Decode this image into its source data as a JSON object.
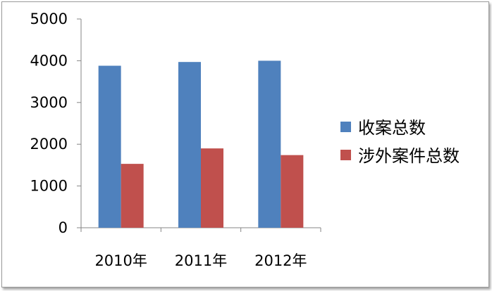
{
  "chart_data": {
    "type": "bar",
    "categories": [
      "2010年",
      "2011年",
      "2012年"
    ],
    "series": [
      {
        "name": "收案总数",
        "color": "#4f81bd",
        "values": [
          3880,
          3970,
          4000
        ]
      },
      {
        "name": "涉外案件总数",
        "color": "#c0504d",
        "values": [
          1530,
          1900,
          1740
        ]
      }
    ],
    "ylim": [
      0,
      5000
    ],
    "yticks": [
      "0",
      "1000",
      "2000",
      "3000",
      "4000",
      "5000"
    ],
    "grid": false,
    "legend": "right"
  }
}
